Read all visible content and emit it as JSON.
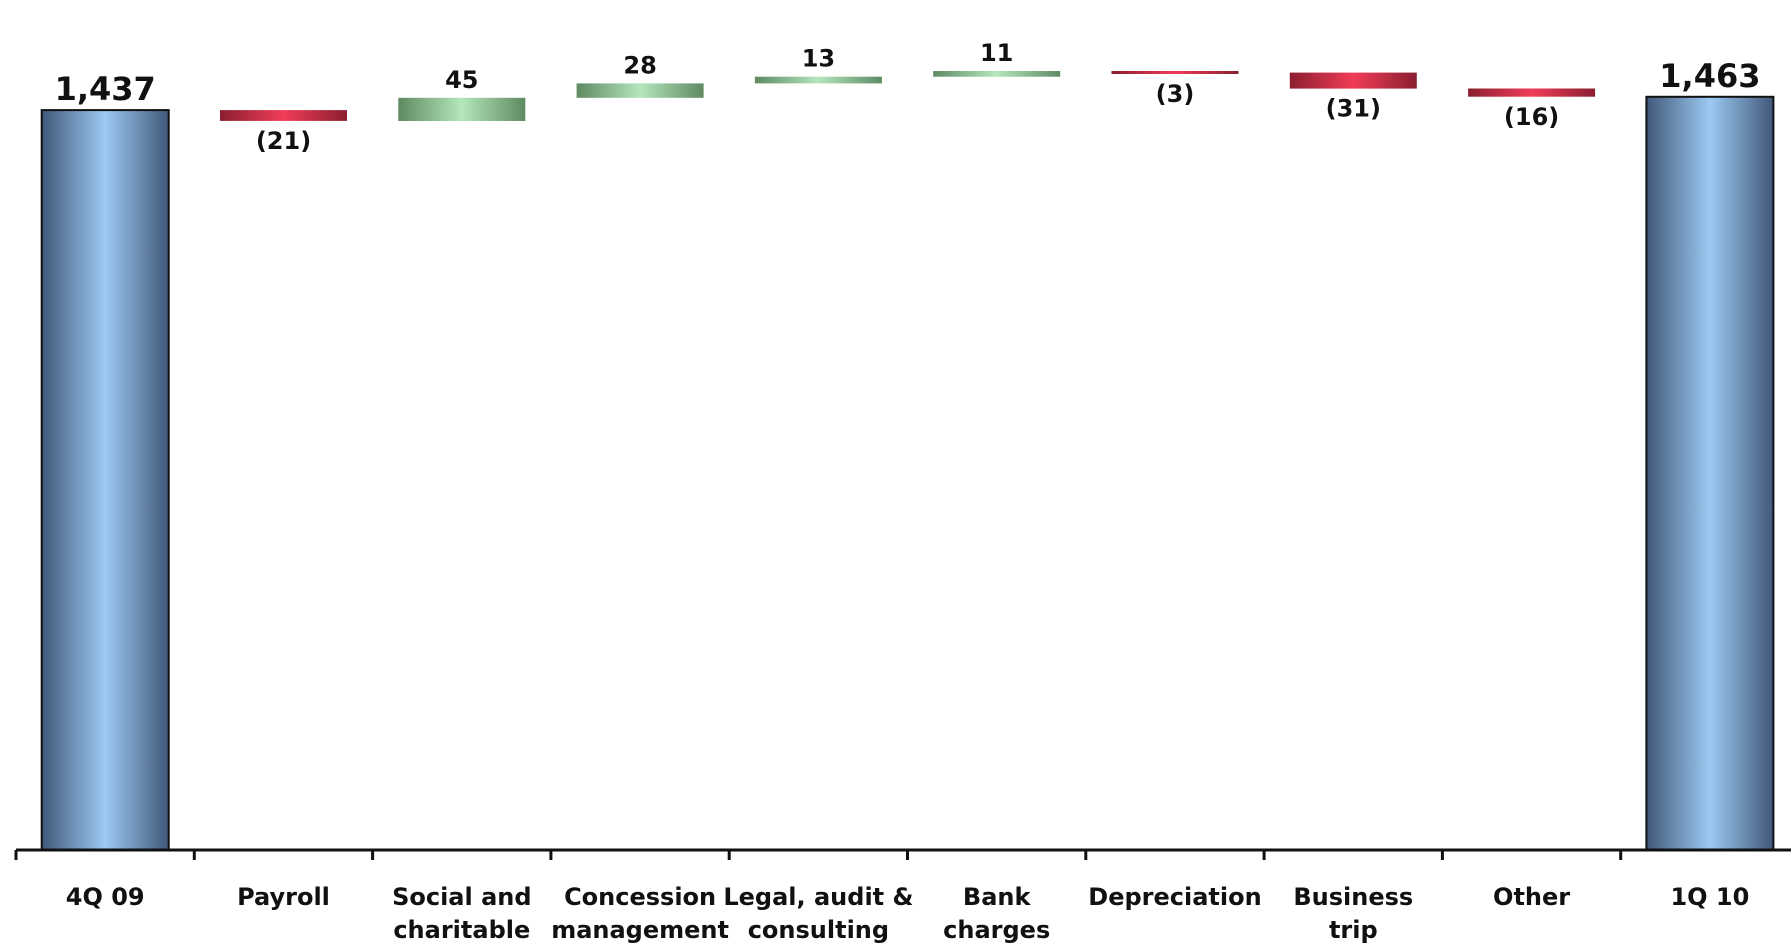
{
  "chart_data": {
    "type": "waterfall",
    "title": "",
    "xlabel": "",
    "ylabel": "",
    "categories": [
      [
        "4Q 09"
      ],
      [
        "Payroll"
      ],
      [
        "Social and",
        "charitable"
      ],
      [
        "Concession",
        "management"
      ],
      [
        "Legal, audit &",
        "consulting"
      ],
      [
        "Bank",
        "charges"
      ],
      [
        "Depreciation"
      ],
      [
        "Business",
        "trip"
      ],
      [
        "Other"
      ],
      [
        "1Q 10"
      ]
    ],
    "values": [
      1437,
      -21,
      45,
      28,
      13,
      11,
      -3,
      -31,
      -16,
      1463
    ],
    "kinds": [
      "total",
      "delta",
      "delta",
      "delta",
      "delta",
      "delta",
      "delta",
      "delta",
      "delta",
      "total"
    ],
    "labels": [
      "1,437",
      "(21)",
      "45",
      "28",
      "13",
      "11",
      "(3)",
      "(31)",
      "(16)",
      "1,463"
    ],
    "ylim": [
      0,
      1480
    ],
    "colors": {
      "total": "#9ccaf2",
      "increase": "#b5e6bc",
      "decrease": "#f03c58"
    }
  }
}
